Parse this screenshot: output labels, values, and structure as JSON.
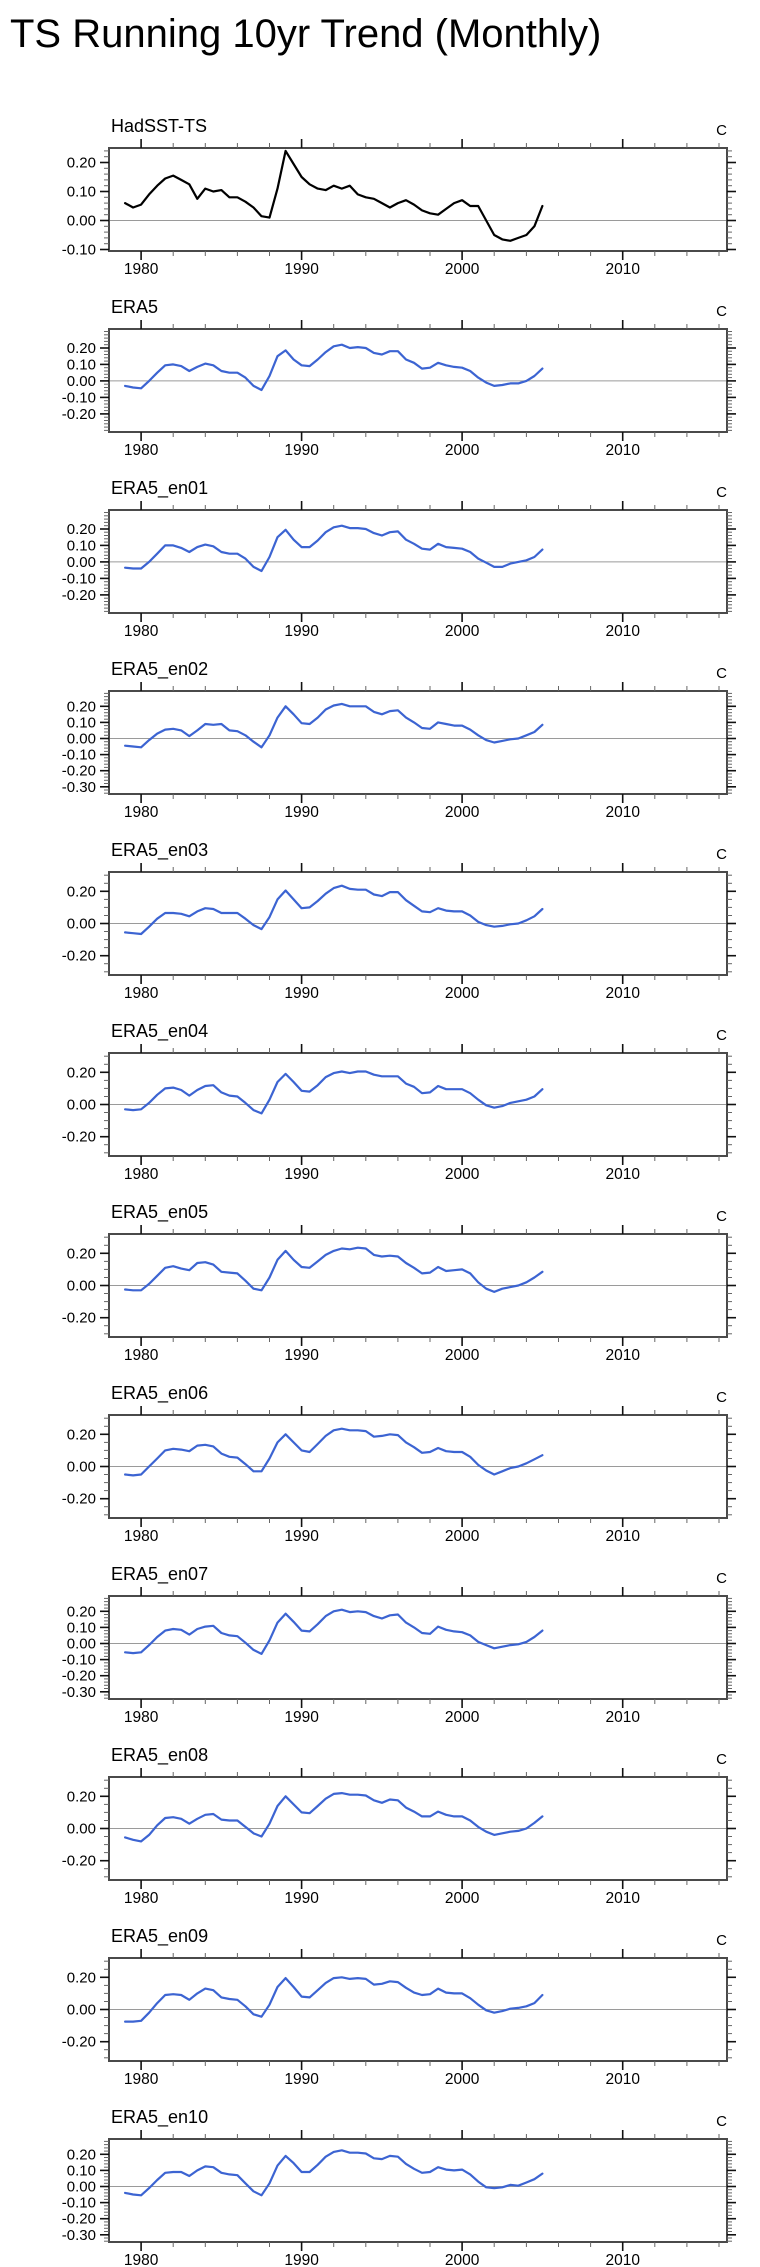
{
  "page_title": "TS Running 10yr Trend (Monthly)",
  "unit_label": "C",
  "colors": {
    "frame": "#4a4a4a",
    "tick_major": "#111111",
    "tick_minor": "#666666",
    "zero_line": "#9a9a9a",
    "hadsst_line": "#000000",
    "era5_line": "#3C64D2"
  },
  "axis": {
    "xlim": [
      1978,
      2016.5
    ],
    "xticks": [
      1980,
      1990,
      2000,
      2010
    ],
    "xminor_start": 1978,
    "xminor_step": 2
  },
  "chart_data": [
    {
      "type": "line",
      "title": "HadSST-TS",
      "color": "#000000",
      "ylim": [
        -0.105,
        0.25
      ],
      "yticks": [
        0.2,
        0.1,
        0.0,
        -0.1
      ],
      "yminor_step": 0.02,
      "x_start": 1979.0,
      "x_step": 0.5,
      "values": [
        0.06,
        0.045,
        0.055,
        0.09,
        0.12,
        0.145,
        0.155,
        0.14,
        0.125,
        0.075,
        0.11,
        0.1,
        0.105,
        0.08,
        0.08,
        0.065,
        0.045,
        0.015,
        0.01,
        0.11,
        0.24,
        0.195,
        0.15,
        0.125,
        0.11,
        0.105,
        0.12,
        0.11,
        0.12,
        0.09,
        0.08,
        0.075,
        0.06,
        0.045,
        0.06,
        0.07,
        0.055,
        0.035,
        0.025,
        0.02,
        0.04,
        0.06,
        0.07,
        0.05,
        0.05,
        0.0,
        -0.05,
        -0.065,
        -0.07,
        -0.06,
        -0.05,
        -0.02,
        0.05
      ]
    },
    {
      "type": "line",
      "title": "ERA5",
      "color": "#3C64D2",
      "ylim": [
        -0.31,
        0.315
      ],
      "yticks": [
        0.2,
        0.1,
        0.0,
        -0.1,
        -0.2
      ],
      "yminor_step": 0.02,
      "x_start": 1979.0,
      "x_step": 0.5,
      "values": [
        -0.03,
        -0.04,
        -0.045,
        0.0,
        0.05,
        0.095,
        0.1,
        0.09,
        0.06,
        0.085,
        0.105,
        0.095,
        0.06,
        0.05,
        0.05,
        0.02,
        -0.03,
        -0.055,
        0.03,
        0.15,
        0.185,
        0.13,
        0.095,
        0.09,
        0.13,
        0.175,
        0.21,
        0.22,
        0.2,
        0.205,
        0.2,
        0.17,
        0.16,
        0.18,
        0.18,
        0.13,
        0.11,
        0.075,
        0.08,
        0.11,
        0.095,
        0.085,
        0.08,
        0.06,
        0.02,
        -0.01,
        -0.03,
        -0.025,
        -0.015,
        -0.015,
        0.0,
        0.03,
        0.075
      ]
    },
    {
      "type": "line",
      "title": "ERA5_en01",
      "color": "#3C64D2",
      "ylim": [
        -0.31,
        0.315
      ],
      "yticks": [
        0.2,
        0.1,
        0.0,
        -0.1,
        -0.2
      ],
      "yminor_step": 0.02,
      "x_start": 1979.0,
      "x_step": 0.5,
      "values": [
        -0.035,
        -0.04,
        -0.04,
        0.0,
        0.05,
        0.1,
        0.1,
        0.085,
        0.06,
        0.09,
        0.105,
        0.095,
        0.06,
        0.05,
        0.05,
        0.02,
        -0.03,
        -0.055,
        0.03,
        0.15,
        0.195,
        0.135,
        0.09,
        0.09,
        0.13,
        0.18,
        0.21,
        0.22,
        0.205,
        0.205,
        0.2,
        0.175,
        0.16,
        0.18,
        0.185,
        0.135,
        0.11,
        0.08,
        0.075,
        0.11,
        0.09,
        0.085,
        0.08,
        0.06,
        0.02,
        -0.005,
        -0.03,
        -0.03,
        -0.01,
        0.0,
        0.01,
        0.03,
        0.075
      ]
    },
    {
      "type": "line",
      "title": "ERA5_en02",
      "color": "#3C64D2",
      "ylim": [
        -0.345,
        0.295
      ],
      "yticks": [
        0.2,
        0.1,
        0.0,
        -0.1,
        -0.2,
        -0.3
      ],
      "yminor_step": 0.02,
      "x_start": 1979.0,
      "x_step": 0.5,
      "values": [
        -0.045,
        -0.05,
        -0.055,
        -0.01,
        0.03,
        0.055,
        0.06,
        0.05,
        0.015,
        0.05,
        0.09,
        0.085,
        0.09,
        0.05,
        0.045,
        0.02,
        -0.02,
        -0.055,
        0.02,
        0.13,
        0.2,
        0.15,
        0.095,
        0.09,
        0.13,
        0.18,
        0.205,
        0.215,
        0.2,
        0.2,
        0.2,
        0.165,
        0.15,
        0.17,
        0.175,
        0.13,
        0.1,
        0.065,
        0.06,
        0.1,
        0.09,
        0.08,
        0.08,
        0.055,
        0.02,
        -0.01,
        -0.025,
        -0.015,
        -0.005,
        0.0,
        0.02,
        0.04,
        0.085
      ]
    },
    {
      "type": "line",
      "title": "ERA5_en03",
      "color": "#3C64D2",
      "ylim": [
        -0.32,
        0.32
      ],
      "yticks": [
        0.2,
        0.0,
        -0.2
      ],
      "yminor_step": 0.05,
      "x_start": 1979.0,
      "x_step": 0.5,
      "values": [
        -0.055,
        -0.06,
        -0.065,
        -0.02,
        0.03,
        0.065,
        0.065,
        0.06,
        0.045,
        0.075,
        0.095,
        0.09,
        0.065,
        0.065,
        0.065,
        0.03,
        -0.01,
        -0.035,
        0.04,
        0.15,
        0.205,
        0.15,
        0.095,
        0.1,
        0.14,
        0.185,
        0.22,
        0.235,
        0.215,
        0.21,
        0.21,
        0.18,
        0.17,
        0.195,
        0.195,
        0.145,
        0.11,
        0.075,
        0.07,
        0.095,
        0.08,
        0.075,
        0.075,
        0.05,
        0.01,
        -0.01,
        -0.02,
        -0.015,
        -0.005,
        0.0,
        0.02,
        0.045,
        0.09
      ]
    },
    {
      "type": "line",
      "title": "ERA5_en04",
      "color": "#3C64D2",
      "ylim": [
        -0.32,
        0.32
      ],
      "yticks": [
        0.2,
        0.0,
        -0.2
      ],
      "yminor_step": 0.05,
      "x_start": 1979.0,
      "x_step": 0.5,
      "values": [
        -0.03,
        -0.035,
        -0.03,
        0.01,
        0.06,
        0.1,
        0.105,
        0.09,
        0.055,
        0.09,
        0.115,
        0.12,
        0.075,
        0.055,
        0.05,
        0.01,
        -0.035,
        -0.055,
        0.03,
        0.14,
        0.19,
        0.14,
        0.085,
        0.08,
        0.12,
        0.17,
        0.195,
        0.205,
        0.195,
        0.205,
        0.205,
        0.185,
        0.175,
        0.175,
        0.175,
        0.13,
        0.11,
        0.07,
        0.075,
        0.115,
        0.095,
        0.095,
        0.095,
        0.07,
        0.03,
        -0.005,
        -0.02,
        -0.01,
        0.01,
        0.02,
        0.03,
        0.05,
        0.095
      ]
    },
    {
      "type": "line",
      "title": "ERA5_en05",
      "color": "#3C64D2",
      "ylim": [
        -0.32,
        0.32
      ],
      "yticks": [
        0.2,
        0.0,
        -0.2
      ],
      "yminor_step": 0.05,
      "x_start": 1979.0,
      "x_step": 0.5,
      "values": [
        -0.025,
        -0.03,
        -0.03,
        0.01,
        0.06,
        0.11,
        0.12,
        0.105,
        0.095,
        0.14,
        0.145,
        0.13,
        0.085,
        0.08,
        0.075,
        0.03,
        -0.02,
        -0.03,
        0.05,
        0.16,
        0.215,
        0.16,
        0.115,
        0.11,
        0.15,
        0.19,
        0.215,
        0.23,
        0.225,
        0.235,
        0.23,
        0.19,
        0.18,
        0.185,
        0.18,
        0.14,
        0.11,
        0.075,
        0.08,
        0.115,
        0.09,
        0.095,
        0.1,
        0.075,
        0.02,
        -0.02,
        -0.04,
        -0.02,
        -0.01,
        0.0,
        0.02,
        0.05,
        0.085
      ]
    },
    {
      "type": "line",
      "title": "ERA5_en06",
      "color": "#3C64D2",
      "ylim": [
        -0.32,
        0.32
      ],
      "yticks": [
        0.2,
        0.0,
        -0.2
      ],
      "yminor_step": 0.05,
      "x_start": 1979.0,
      "x_step": 0.5,
      "values": [
        -0.05,
        -0.055,
        -0.05,
        0.0,
        0.05,
        0.1,
        0.11,
        0.105,
        0.095,
        0.13,
        0.135,
        0.125,
        0.08,
        0.06,
        0.055,
        0.015,
        -0.03,
        -0.03,
        0.05,
        0.15,
        0.2,
        0.15,
        0.1,
        0.09,
        0.14,
        0.19,
        0.225,
        0.235,
        0.225,
        0.225,
        0.22,
        0.185,
        0.19,
        0.2,
        0.195,
        0.15,
        0.12,
        0.085,
        0.09,
        0.115,
        0.095,
        0.09,
        0.09,
        0.06,
        0.01,
        -0.025,
        -0.05,
        -0.03,
        -0.01,
        0.0,
        0.02,
        0.045,
        0.07
      ]
    },
    {
      "type": "line",
      "title": "ERA5_en07",
      "color": "#3C64D2",
      "ylim": [
        -0.345,
        0.295
      ],
      "yticks": [
        0.2,
        0.1,
        0.0,
        -0.1,
        -0.2,
        -0.3
      ],
      "yminor_step": 0.02,
      "x_start": 1979.0,
      "x_step": 0.5,
      "values": [
        -0.055,
        -0.06,
        -0.055,
        -0.01,
        0.04,
        0.08,
        0.09,
        0.085,
        0.055,
        0.09,
        0.105,
        0.11,
        0.065,
        0.05,
        0.045,
        0.005,
        -0.04,
        -0.065,
        0.02,
        0.13,
        0.185,
        0.135,
        0.08,
        0.075,
        0.12,
        0.17,
        0.2,
        0.21,
        0.195,
        0.2,
        0.195,
        0.17,
        0.155,
        0.175,
        0.18,
        0.13,
        0.1,
        0.065,
        0.06,
        0.105,
        0.085,
        0.075,
        0.07,
        0.05,
        0.01,
        -0.01,
        -0.03,
        -0.02,
        -0.01,
        -0.005,
        0.01,
        0.04,
        0.08
      ]
    },
    {
      "type": "line",
      "title": "ERA5_en08",
      "color": "#3C64D2",
      "ylim": [
        -0.32,
        0.32
      ],
      "yticks": [
        0.2,
        0.0,
        -0.2
      ],
      "yminor_step": 0.05,
      "x_start": 1979.0,
      "x_step": 0.5,
      "values": [
        -0.055,
        -0.07,
        -0.08,
        -0.04,
        0.02,
        0.065,
        0.07,
        0.06,
        0.03,
        0.06,
        0.085,
        0.09,
        0.055,
        0.05,
        0.05,
        0.01,
        -0.03,
        -0.05,
        0.03,
        0.14,
        0.2,
        0.15,
        0.1,
        0.095,
        0.14,
        0.185,
        0.215,
        0.22,
        0.21,
        0.21,
        0.205,
        0.175,
        0.16,
        0.18,
        0.175,
        0.13,
        0.105,
        0.075,
        0.075,
        0.105,
        0.085,
        0.075,
        0.075,
        0.05,
        0.01,
        -0.02,
        -0.04,
        -0.03,
        -0.02,
        -0.015,
        0.0,
        0.035,
        0.075
      ]
    },
    {
      "type": "line",
      "title": "ERA5_en09",
      "color": "#3C64D2",
      "ylim": [
        -0.32,
        0.32
      ],
      "yticks": [
        0.2,
        0.0,
        -0.2
      ],
      "yminor_step": 0.05,
      "x_start": 1979.0,
      "x_step": 0.5,
      "values": [
        -0.075,
        -0.075,
        -0.07,
        -0.02,
        0.04,
        0.09,
        0.095,
        0.09,
        0.06,
        0.1,
        0.13,
        0.12,
        0.075,
        0.065,
        0.06,
        0.02,
        -0.03,
        -0.045,
        0.03,
        0.14,
        0.195,
        0.14,
        0.08,
        0.075,
        0.12,
        0.165,
        0.195,
        0.2,
        0.19,
        0.195,
        0.19,
        0.155,
        0.16,
        0.175,
        0.17,
        0.135,
        0.105,
        0.09,
        0.095,
        0.13,
        0.105,
        0.1,
        0.1,
        0.07,
        0.03,
        -0.005,
        -0.02,
        -0.01,
        0.005,
        0.01,
        0.02,
        0.04,
        0.09
      ]
    },
    {
      "type": "line",
      "title": "ERA5_en10",
      "color": "#3C64D2",
      "ylim": [
        -0.345,
        0.295
      ],
      "yticks": [
        0.2,
        0.1,
        0.0,
        -0.1,
        -0.2,
        -0.3
      ],
      "yminor_step": 0.02,
      "x_start": 1979.0,
      "x_step": 0.5,
      "values": [
        -0.04,
        -0.05,
        -0.055,
        -0.01,
        0.04,
        0.085,
        0.09,
        0.09,
        0.065,
        0.1,
        0.125,
        0.12,
        0.085,
        0.075,
        0.07,
        0.02,
        -0.03,
        -0.055,
        0.02,
        0.13,
        0.19,
        0.145,
        0.09,
        0.09,
        0.135,
        0.185,
        0.215,
        0.225,
        0.21,
        0.21,
        0.205,
        0.175,
        0.17,
        0.19,
        0.185,
        0.14,
        0.11,
        0.085,
        0.09,
        0.12,
        0.105,
        0.1,
        0.105,
        0.075,
        0.03,
        -0.005,
        -0.01,
        -0.005,
        0.01,
        0.005,
        0.025,
        0.045,
        0.08
      ]
    }
  ]
}
